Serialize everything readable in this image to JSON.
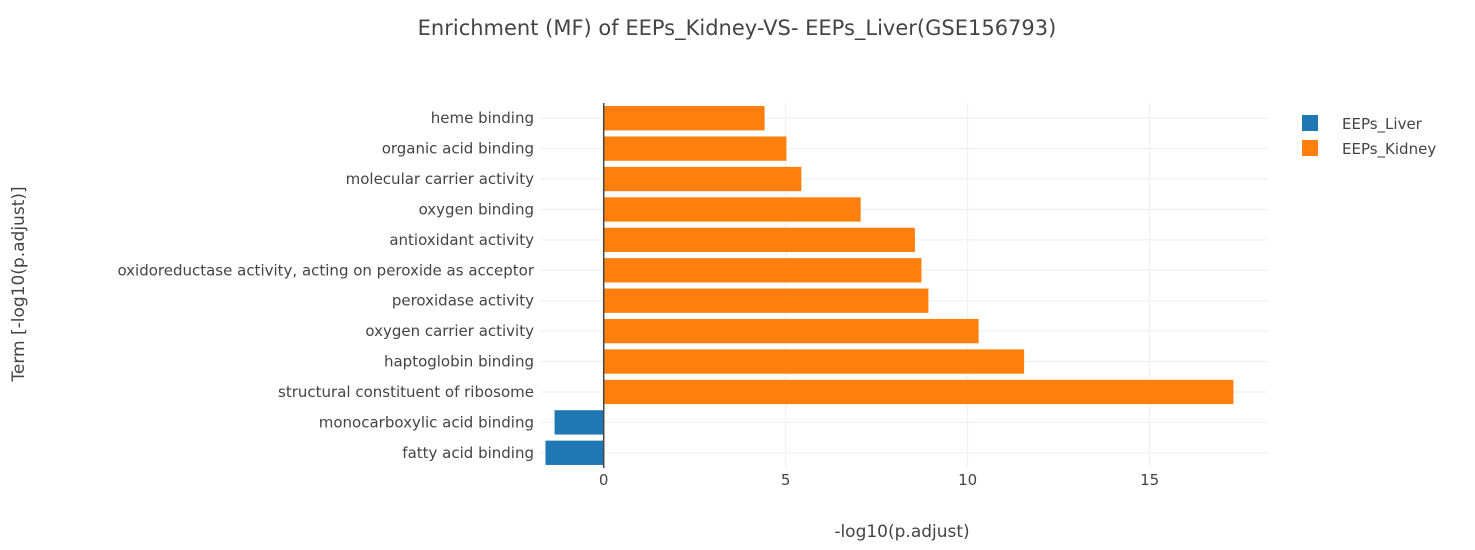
{
  "chart_data": {
    "type": "bar",
    "orientation": "horizontal",
    "title": "Enrichment (MF) of  EEPs_Kidney-VS- EEPs_Liver(GSE156793)",
    "xlabel": "-log10(p.adjust)",
    "ylabel": "Term [-log10(p.adjust)]",
    "xlim": [
      -1.75,
      18.25
    ],
    "xticks": [
      0,
      5,
      10,
      15
    ],
    "grid": true,
    "legend_position": "top-right",
    "categories": [
      "fatty acid binding",
      "monocarboxylic acid binding",
      "structural constituent of ribosome",
      "haptoglobin binding",
      "oxygen carrier activity",
      "peroxidase activity",
      "oxidoreductase activity, acting on peroxide as acceptor",
      "antioxidant activity",
      "oxygen binding",
      "molecular carrier activity",
      "organic acid binding",
      "heme binding"
    ],
    "series": [
      {
        "name": "EEPs_Liver",
        "color": "#1f77b4",
        "values": [
          -1.6,
          -1.35,
          null,
          null,
          null,
          null,
          null,
          null,
          null,
          null,
          null,
          null
        ]
      },
      {
        "name": "EEPs_Kidney",
        "color": "#ff7f0e",
        "values": [
          null,
          null,
          17.3,
          11.55,
          10.3,
          8.92,
          8.73,
          8.55,
          7.06,
          5.43,
          5.02,
          4.42
        ]
      }
    ]
  }
}
